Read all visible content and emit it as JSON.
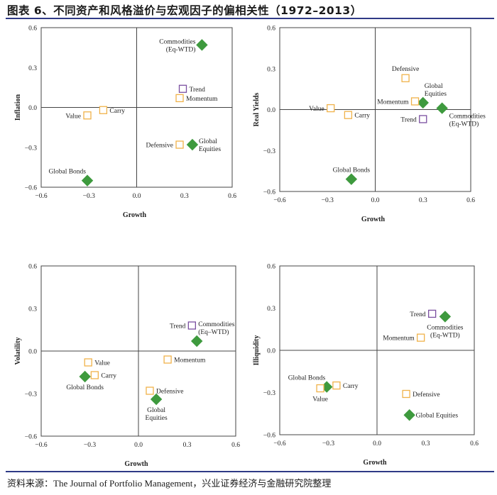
{
  "title": "图表 6、不同资产和风格溢价与宏观因子的偏相关性（1972–2013）",
  "source": "资料来源：The Journal of Portfolio Management，兴业证券经济与金融研究院整理",
  "colors": {
    "diamond": "#3e9a3e",
    "square_orange": "#f0b24a",
    "square_purple": "#7a4fa0",
    "axis": "#444444",
    "title_rule": "#2f3a86"
  },
  "chart_data": [
    {
      "type": "scatter",
      "xlabel": "Growth",
      "ylabel": "Inflation",
      "xlim": [
        -0.6,
        0.6
      ],
      "ylim": [
        -0.6,
        0.6
      ],
      "xticks": [
        "−0.6",
        "−0.3",
        "0.0",
        "0.3",
        "0.6"
      ],
      "yticks": [
        "0.6",
        "0.3",
        "0.0",
        "−0.3",
        "−0.6"
      ],
      "grid": false,
      "points": [
        {
          "name": "Commodities (Eq-WTD)",
          "lines": [
            "Commodities",
            "(Eq-WTD)"
          ],
          "x": 0.41,
          "y": 0.47,
          "marker": "diamond",
          "label_pos": "left"
        },
        {
          "name": "Trend",
          "lines": [
            "Trend"
          ],
          "x": 0.29,
          "y": 0.14,
          "marker": "square_purple",
          "label_pos": "right"
        },
        {
          "name": "Momentum",
          "lines": [
            "Momentum"
          ],
          "x": 0.27,
          "y": 0.07,
          "marker": "square_orange",
          "label_pos": "right"
        },
        {
          "name": "Value",
          "lines": [
            "Value"
          ],
          "x": -0.31,
          "y": -0.06,
          "marker": "square_orange",
          "label_pos": "left"
        },
        {
          "name": "Carry",
          "lines": [
            "Carry"
          ],
          "x": -0.21,
          "y": -0.02,
          "marker": "square_orange",
          "label_pos": "right"
        },
        {
          "name": "Defensive",
          "lines": [
            "Defensive"
          ],
          "x": 0.27,
          "y": -0.28,
          "marker": "square_orange",
          "label_pos": "left"
        },
        {
          "name": "Global Equities",
          "lines": [
            "Global",
            "Equities"
          ],
          "x": 0.35,
          "y": -0.28,
          "marker": "diamond",
          "label_pos": "right"
        },
        {
          "name": "Global Bonds",
          "lines": [
            "Global Bonds"
          ],
          "x": -0.31,
          "y": -0.55,
          "marker": "diamond",
          "label_pos": "above-left"
        }
      ]
    },
    {
      "type": "scatter",
      "xlabel": "Growth",
      "ylabel": "Real Yields",
      "xlim": [
        -0.6,
        0.6
      ],
      "ylim": [
        -0.6,
        0.6
      ],
      "xticks": [
        "−0.6",
        "−0.3",
        "0.0",
        "0.3",
        "0.6"
      ],
      "yticks": [
        "0.6",
        "0.3",
        "0.0",
        "−0.3",
        "−0.6"
      ],
      "grid": false,
      "points": [
        {
          "name": "Defensive",
          "lines": [
            "Defensive"
          ],
          "x": 0.19,
          "y": 0.23,
          "marker": "square_orange",
          "label_pos": "above"
        },
        {
          "name": "Global Equities",
          "lines": [
            "Global",
            "Equities"
          ],
          "x": 0.3,
          "y": 0.05,
          "marker": "diamond",
          "label_pos": "above-right"
        },
        {
          "name": "Momentum",
          "lines": [
            "Momentum"
          ],
          "x": 0.25,
          "y": 0.06,
          "marker": "square_orange",
          "label_pos": "left"
        },
        {
          "name": "Value",
          "lines": [
            "Value"
          ],
          "x": -0.28,
          "y": 0.01,
          "marker": "square_orange",
          "label_pos": "left"
        },
        {
          "name": "Carry",
          "lines": [
            "Carry"
          ],
          "x": -0.17,
          "y": -0.04,
          "marker": "square_orange",
          "label_pos": "right"
        },
        {
          "name": "Commodities (Eq-WTD)",
          "lines": [
            "Commodities",
            "(Eq-WTD)"
          ],
          "x": 0.42,
          "y": 0.01,
          "marker": "diamond",
          "label_pos": "right-below"
        },
        {
          "name": "Trend",
          "lines": [
            "Trend"
          ],
          "x": 0.3,
          "y": -0.07,
          "marker": "square_purple",
          "label_pos": "left"
        },
        {
          "name": "Global Bonds",
          "lines": [
            "Global Bonds"
          ],
          "x": -0.15,
          "y": -0.51,
          "marker": "diamond",
          "label_pos": "above"
        }
      ]
    },
    {
      "type": "scatter",
      "xlabel": "Growth",
      "ylabel": "Volatility",
      "xlim": [
        -0.6,
        0.6
      ],
      "ylim": [
        -0.6,
        0.6
      ],
      "xticks": [
        "−0.6",
        "−0.3",
        "0.0",
        "0.3",
        "0.6"
      ],
      "yticks": [
        "0.6",
        "0.3",
        "0.0",
        "−0.3",
        "−0.6"
      ],
      "grid": false,
      "points": [
        {
          "name": "Trend",
          "lines": [
            "Trend"
          ],
          "x": 0.33,
          "y": 0.18,
          "marker": "square_purple",
          "label_pos": "left"
        },
        {
          "name": "Commodities (Eq-WTD)",
          "lines": [
            "Commodities",
            "(Eq–WTD)"
          ],
          "x": 0.36,
          "y": 0.07,
          "marker": "diamond",
          "label_pos": "above-right"
        },
        {
          "name": "Value",
          "lines": [
            "Value"
          ],
          "x": -0.31,
          "y": -0.08,
          "marker": "square_orange",
          "label_pos": "right"
        },
        {
          "name": "Momentum",
          "lines": [
            "Momentum"
          ],
          "x": 0.18,
          "y": -0.06,
          "marker": "square_orange",
          "label_pos": "right"
        },
        {
          "name": "Carry",
          "lines": [
            "Carry"
          ],
          "x": -0.27,
          "y": -0.17,
          "marker": "square_orange",
          "label_pos": "right"
        },
        {
          "name": "Global Bonds",
          "lines": [
            "Global Bonds"
          ],
          "x": -0.33,
          "y": -0.18,
          "marker": "diamond",
          "label_pos": "below"
        },
        {
          "name": "Defensive",
          "lines": [
            "Defensive"
          ],
          "x": 0.07,
          "y": -0.28,
          "marker": "square_orange",
          "label_pos": "right"
        },
        {
          "name": "Global Equities",
          "lines": [
            "Global",
            "Equities"
          ],
          "x": 0.11,
          "y": -0.34,
          "marker": "diamond",
          "label_pos": "below"
        }
      ]
    },
    {
      "type": "scatter",
      "xlabel": "Growth",
      "ylabel": "Illiquidity",
      "xlim": [
        -0.6,
        0.6
      ],
      "ylim": [
        -0.6,
        0.6
      ],
      "xticks": [
        "−0.6",
        "−0.3",
        "0.0",
        "0.3",
        "0.6"
      ],
      "yticks": [
        "0.6",
        "0.3",
        "0.0",
        "−0.3",
        "−0.6"
      ],
      "grid": false,
      "points": [
        {
          "name": "Trend",
          "lines": [
            "Trend"
          ],
          "x": 0.34,
          "y": 0.26,
          "marker": "square_purple",
          "label_pos": "left"
        },
        {
          "name": "Commodities (Eq-WTD)",
          "lines": [
            "Commodities",
            "(Eq-WTD)"
          ],
          "x": 0.42,
          "y": 0.24,
          "marker": "diamond",
          "label_pos": "below"
        },
        {
          "name": "Momentum",
          "lines": [
            "Momentum"
          ],
          "x": 0.27,
          "y": 0.09,
          "marker": "square_orange",
          "label_pos": "left"
        },
        {
          "name": "Global Bonds",
          "lines": [
            "Global Bonds"
          ],
          "x": -0.31,
          "y": -0.26,
          "marker": "diamond",
          "label_pos": "above-left"
        },
        {
          "name": "Value",
          "lines": [
            "Value"
          ],
          "x": -0.35,
          "y": -0.27,
          "marker": "square_orange",
          "label_pos": "below"
        },
        {
          "name": "Carry",
          "lines": [
            "Carry"
          ],
          "x": -0.25,
          "y": -0.25,
          "marker": "square_orange",
          "label_pos": "right"
        },
        {
          "name": "Defensive",
          "lines": [
            "Defensive"
          ],
          "x": 0.18,
          "y": -0.31,
          "marker": "square_orange",
          "label_pos": "right"
        },
        {
          "name": "Global Equities",
          "lines": [
            "Global Equities"
          ],
          "x": 0.2,
          "y": -0.46,
          "marker": "diamond",
          "label_pos": "right"
        }
      ]
    }
  ]
}
